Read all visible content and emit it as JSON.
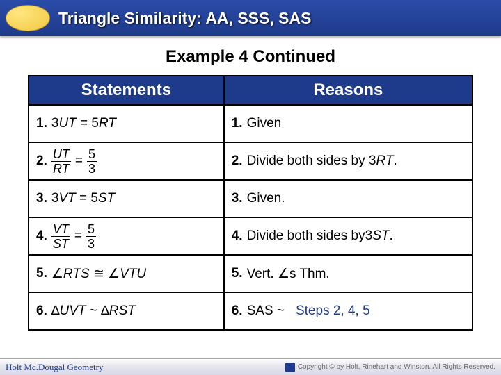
{
  "header": {
    "title": "Triangle Similarity: AA, SSS, SAS"
  },
  "subtitle": "Example 4 Continued",
  "table": {
    "headers": {
      "statements": "Statements",
      "reasons": "Reasons"
    },
    "rows": [
      {
        "num": "1.",
        "stmt_plain": "3UT = 5RT",
        "reason_num": "1.",
        "reason": "Given"
      },
      {
        "num": "2.",
        "frac_top": "UT",
        "frac_bot": "RT",
        "eq": "=",
        "frac2_top": "5",
        "frac2_bot": "3",
        "reason_num": "2.",
        "reason": "Divide both sides by 3RT."
      },
      {
        "num": "3.",
        "stmt_plain": "3VT = 5ST",
        "reason_num": "3.",
        "reason": "Given."
      },
      {
        "num": "4.",
        "frac_top": "VT",
        "frac_bot": "ST",
        "eq": "=",
        "frac2_top": "5",
        "frac2_bot": "3",
        "reason_num": "4.",
        "reason": "Divide both sides by3ST."
      },
      {
        "num": "5.",
        "angle1": "∠",
        "tri1": "RTS",
        "cong": "≅",
        "angle2": "∠",
        "tri2": "VTU",
        "reason_num": "5.",
        "reason_pre": "Vert. ",
        "reason_sym": "∠",
        "reason_post": "s Thm."
      },
      {
        "num": "6.",
        "d1": "∆",
        "t1": "UVT",
        "sim": "~",
        "d2": "∆",
        "t2": "RST",
        "reason_num": "6.",
        "reason": "SAS ~",
        "steps": "Steps 2, 4, 5"
      }
    ]
  },
  "footer": {
    "left": "Holt Mc.Dougal Geometry",
    "right": "Copyright © by Holt, Rinehart and Winston. All Rights Reserved."
  }
}
